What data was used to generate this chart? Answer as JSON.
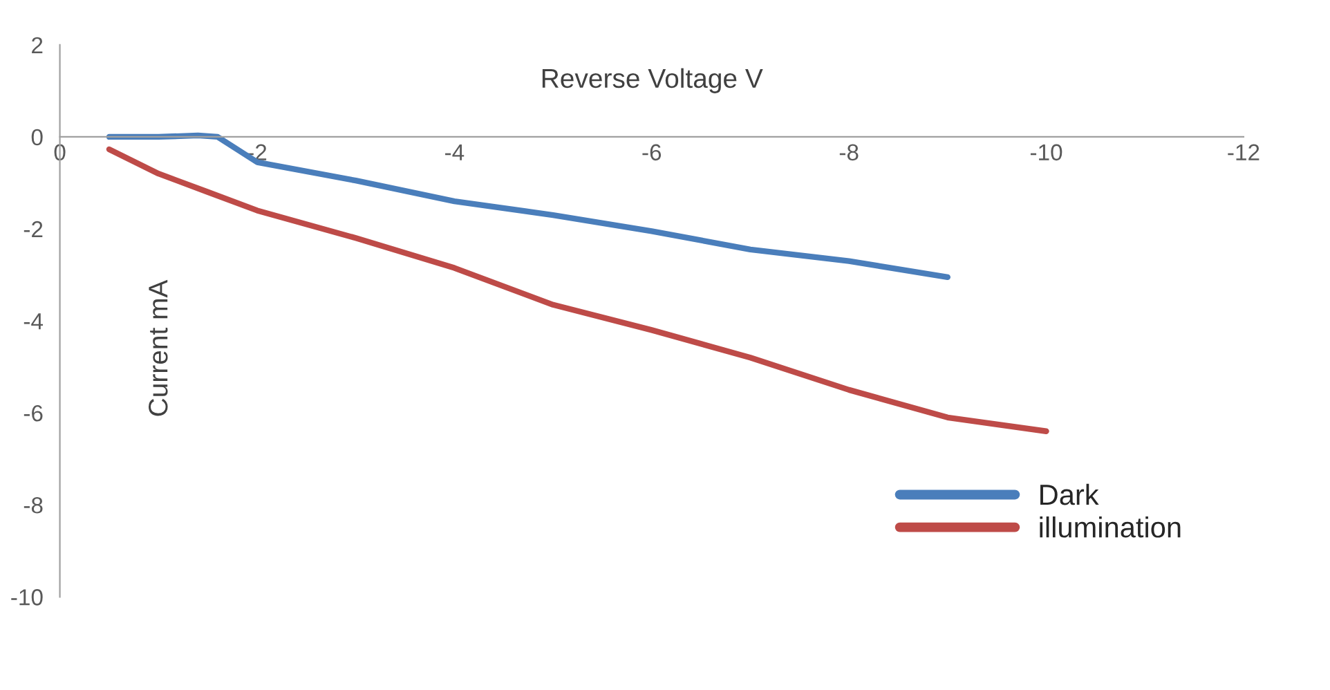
{
  "chart_data": {
    "type": "line",
    "title": "Reverse Voltage V",
    "ylabel": "Current mA",
    "xlim": [
      0,
      -12
    ],
    "xticks": [
      0,
      -2,
      -4,
      -6,
      -8,
      -10,
      -12
    ],
    "ylim": [
      -10,
      2
    ],
    "yticks": [
      2,
      0,
      -2,
      -4,
      -6,
      -8,
      -10
    ],
    "grid": false,
    "legend": "bottom right",
    "marker": "none",
    "line_style": "solid",
    "series": [
      {
        "name": "Dark",
        "color": "#4a7ebb",
        "x": [
          -0.5,
          -1.0,
          -1.4,
          -1.6,
          -2,
          -3,
          -4,
          -5,
          -6,
          -7,
          -8,
          -9
        ],
        "values": [
          0,
          0,
          0.03,
          0,
          -0.55,
          -0.95,
          -1.4,
          -1.7,
          -2.05,
          -2.45,
          -2.7,
          -3.05
        ]
      },
      {
        "name": "illumination",
        "color": "#be4b48",
        "x": [
          -0.5,
          -1,
          -1.5,
          -2,
          -3,
          -4,
          -5,
          -6,
          -7,
          -8,
          -9,
          -10
        ],
        "values": [
          -0.27,
          -0.8,
          -1.2,
          -1.6,
          -2.2,
          -2.85,
          -3.65,
          -4.2,
          -4.8,
          -5.5,
          -6.1,
          -6.4
        ]
      }
    ]
  }
}
